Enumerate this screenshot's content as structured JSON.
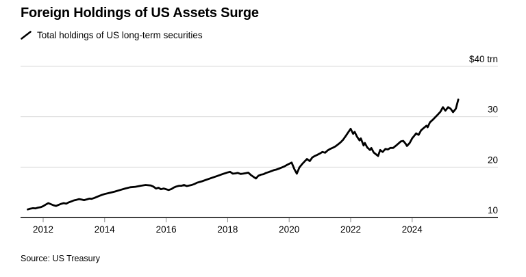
{
  "header": {
    "title": "Foreign Holdings of US Assets Surge",
    "legend": {
      "marker": "black-diagonal-line",
      "label": "Total holdings of US long-term securities"
    }
  },
  "footer": {
    "source": "Source: US Treasury"
  },
  "colors": {
    "background": "#ffffff",
    "line": "#000000",
    "grid": "#d9d9d9",
    "axis": "#000000",
    "tick": "#8a8a8a",
    "text": "#000000"
  },
  "chart_data": {
    "type": "line",
    "title": "Foreign Holdings of US Assets Surge",
    "unit": "$ trillion",
    "xlabel": "",
    "ylabel": "$ trn",
    "xlim": [
      2011.3,
      2026.8
    ],
    "ylim": [
      10,
      40
    ],
    "grid": "horizontal",
    "legend_position": "top-left",
    "x_axis": {
      "tick_years": [
        2012,
        2014,
        2016,
        2018,
        2020,
        2022,
        2024
      ]
    },
    "y_axis": {
      "values": [
        40,
        30,
        20,
        10
      ],
      "labels": [
        "$40 trn",
        "30",
        "20",
        "10"
      ]
    },
    "series": [
      {
        "name": "Total holdings of US long-term securities",
        "points": [
          [
            2011.5,
            11.6
          ],
          [
            2011.58,
            11.75
          ],
          [
            2011.67,
            11.85
          ],
          [
            2011.75,
            11.8
          ],
          [
            2011.83,
            11.95
          ],
          [
            2011.92,
            12.05
          ],
          [
            2012.0,
            12.25
          ],
          [
            2012.08,
            12.55
          ],
          [
            2012.17,
            12.85
          ],
          [
            2012.25,
            12.65
          ],
          [
            2012.33,
            12.45
          ],
          [
            2012.42,
            12.3
          ],
          [
            2012.5,
            12.5
          ],
          [
            2012.58,
            12.7
          ],
          [
            2012.67,
            12.85
          ],
          [
            2012.75,
            12.75
          ],
          [
            2012.83,
            13.0
          ],
          [
            2012.92,
            13.2
          ],
          [
            2013.0,
            13.4
          ],
          [
            2013.08,
            13.5
          ],
          [
            2013.17,
            13.65
          ],
          [
            2013.25,
            13.55
          ],
          [
            2013.33,
            13.45
          ],
          [
            2013.42,
            13.6
          ],
          [
            2013.5,
            13.75
          ],
          [
            2013.58,
            13.7
          ],
          [
            2013.67,
            13.9
          ],
          [
            2013.75,
            14.1
          ],
          [
            2013.83,
            14.3
          ],
          [
            2013.92,
            14.5
          ],
          [
            2014.0,
            14.65
          ],
          [
            2014.17,
            14.9
          ],
          [
            2014.33,
            15.15
          ],
          [
            2014.5,
            15.45
          ],
          [
            2014.67,
            15.75
          ],
          [
            2014.83,
            16.0
          ],
          [
            2015.0,
            16.1
          ],
          [
            2015.17,
            16.3
          ],
          [
            2015.33,
            16.45
          ],
          [
            2015.5,
            16.35
          ],
          [
            2015.58,
            16.15
          ],
          [
            2015.67,
            15.75
          ],
          [
            2015.75,
            15.9
          ],
          [
            2015.83,
            15.6
          ],
          [
            2015.92,
            15.75
          ],
          [
            2016.08,
            15.45
          ],
          [
            2016.17,
            15.65
          ],
          [
            2016.25,
            15.95
          ],
          [
            2016.33,
            16.15
          ],
          [
            2016.42,
            16.3
          ],
          [
            2016.5,
            16.3
          ],
          [
            2016.58,
            16.45
          ],
          [
            2016.67,
            16.25
          ],
          [
            2016.75,
            16.35
          ],
          [
            2016.83,
            16.45
          ],
          [
            2016.92,
            16.65
          ],
          [
            2017.0,
            16.9
          ],
          [
            2017.17,
            17.2
          ],
          [
            2017.33,
            17.55
          ],
          [
            2017.5,
            17.9
          ],
          [
            2017.67,
            18.25
          ],
          [
            2017.83,
            18.6
          ],
          [
            2018.0,
            18.95
          ],
          [
            2018.08,
            19.05
          ],
          [
            2018.17,
            18.7
          ],
          [
            2018.25,
            18.75
          ],
          [
            2018.33,
            18.85
          ],
          [
            2018.42,
            18.65
          ],
          [
            2018.5,
            18.7
          ],
          [
            2018.58,
            18.8
          ],
          [
            2018.67,
            18.9
          ],
          [
            2018.75,
            18.45
          ],
          [
            2018.83,
            18.1
          ],
          [
            2018.92,
            17.75
          ],
          [
            2019.0,
            18.3
          ],
          [
            2019.08,
            18.5
          ],
          [
            2019.17,
            18.6
          ],
          [
            2019.25,
            18.85
          ],
          [
            2019.33,
            19.0
          ],
          [
            2019.42,
            19.2
          ],
          [
            2019.5,
            19.4
          ],
          [
            2019.58,
            19.5
          ],
          [
            2019.67,
            19.7
          ],
          [
            2019.75,
            19.9
          ],
          [
            2019.83,
            20.1
          ],
          [
            2019.92,
            20.4
          ],
          [
            2020.0,
            20.65
          ],
          [
            2020.08,
            20.9
          ],
          [
            2020.17,
            19.6
          ],
          [
            2020.25,
            18.7
          ],
          [
            2020.33,
            19.9
          ],
          [
            2020.42,
            20.6
          ],
          [
            2020.5,
            21.1
          ],
          [
            2020.58,
            21.6
          ],
          [
            2020.67,
            21.2
          ],
          [
            2020.75,
            21.9
          ],
          [
            2020.83,
            22.2
          ],
          [
            2020.92,
            22.45
          ],
          [
            2021.0,
            22.7
          ],
          [
            2021.08,
            23.0
          ],
          [
            2021.17,
            22.85
          ],
          [
            2021.25,
            23.3
          ],
          [
            2021.33,
            23.6
          ],
          [
            2021.42,
            23.85
          ],
          [
            2021.5,
            24.1
          ],
          [
            2021.58,
            24.45
          ],
          [
            2021.67,
            24.9
          ],
          [
            2021.75,
            25.4
          ],
          [
            2021.83,
            26.1
          ],
          [
            2021.92,
            26.9
          ],
          [
            2022.0,
            27.6
          ],
          [
            2022.08,
            26.6
          ],
          [
            2022.13,
            27.0
          ],
          [
            2022.21,
            26.0
          ],
          [
            2022.29,
            25.3
          ],
          [
            2022.33,
            25.7
          ],
          [
            2022.42,
            24.3
          ],
          [
            2022.46,
            24.8
          ],
          [
            2022.54,
            23.9
          ],
          [
            2022.63,
            23.4
          ],
          [
            2022.67,
            23.8
          ],
          [
            2022.75,
            22.9
          ],
          [
            2022.83,
            22.5
          ],
          [
            2022.89,
            22.2
          ],
          [
            2022.96,
            23.4
          ],
          [
            2023.04,
            23.0
          ],
          [
            2023.13,
            23.6
          ],
          [
            2023.21,
            23.5
          ],
          [
            2023.29,
            23.8
          ],
          [
            2023.38,
            23.8
          ],
          [
            2023.46,
            24.2
          ],
          [
            2023.54,
            24.6
          ],
          [
            2023.63,
            25.1
          ],
          [
            2023.71,
            25.2
          ],
          [
            2023.79,
            24.6
          ],
          [
            2023.83,
            24.2
          ],
          [
            2023.92,
            24.8
          ],
          [
            2024.0,
            25.7
          ],
          [
            2024.08,
            26.3
          ],
          [
            2024.13,
            26.7
          ],
          [
            2024.21,
            26.4
          ],
          [
            2024.29,
            27.3
          ],
          [
            2024.38,
            27.8
          ],
          [
            2024.46,
            28.2
          ],
          [
            2024.5,
            27.9
          ],
          [
            2024.58,
            28.9
          ],
          [
            2024.67,
            29.4
          ],
          [
            2024.75,
            29.9
          ],
          [
            2024.83,
            30.4
          ],
          [
            2024.92,
            31.0
          ],
          [
            2025.0,
            31.9
          ],
          [
            2025.08,
            31.2
          ],
          [
            2025.17,
            31.9
          ],
          [
            2025.25,
            31.6
          ],
          [
            2025.33,
            30.9
          ],
          [
            2025.42,
            31.6
          ],
          [
            2025.5,
            33.4
          ]
        ]
      }
    ]
  }
}
